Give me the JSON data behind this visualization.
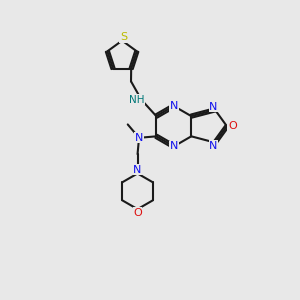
{
  "bg_color": "#e8e8e8",
  "bond_color": "#1a1a1a",
  "N_color": "#1010ee",
  "O_color": "#dd1111",
  "S_color": "#bbbb00",
  "NH_color": "#007777",
  "lw": 1.5,
  "fs": 8.0,
  "xlim": [
    0,
    10
  ],
  "ylim": [
    0,
    10
  ]
}
